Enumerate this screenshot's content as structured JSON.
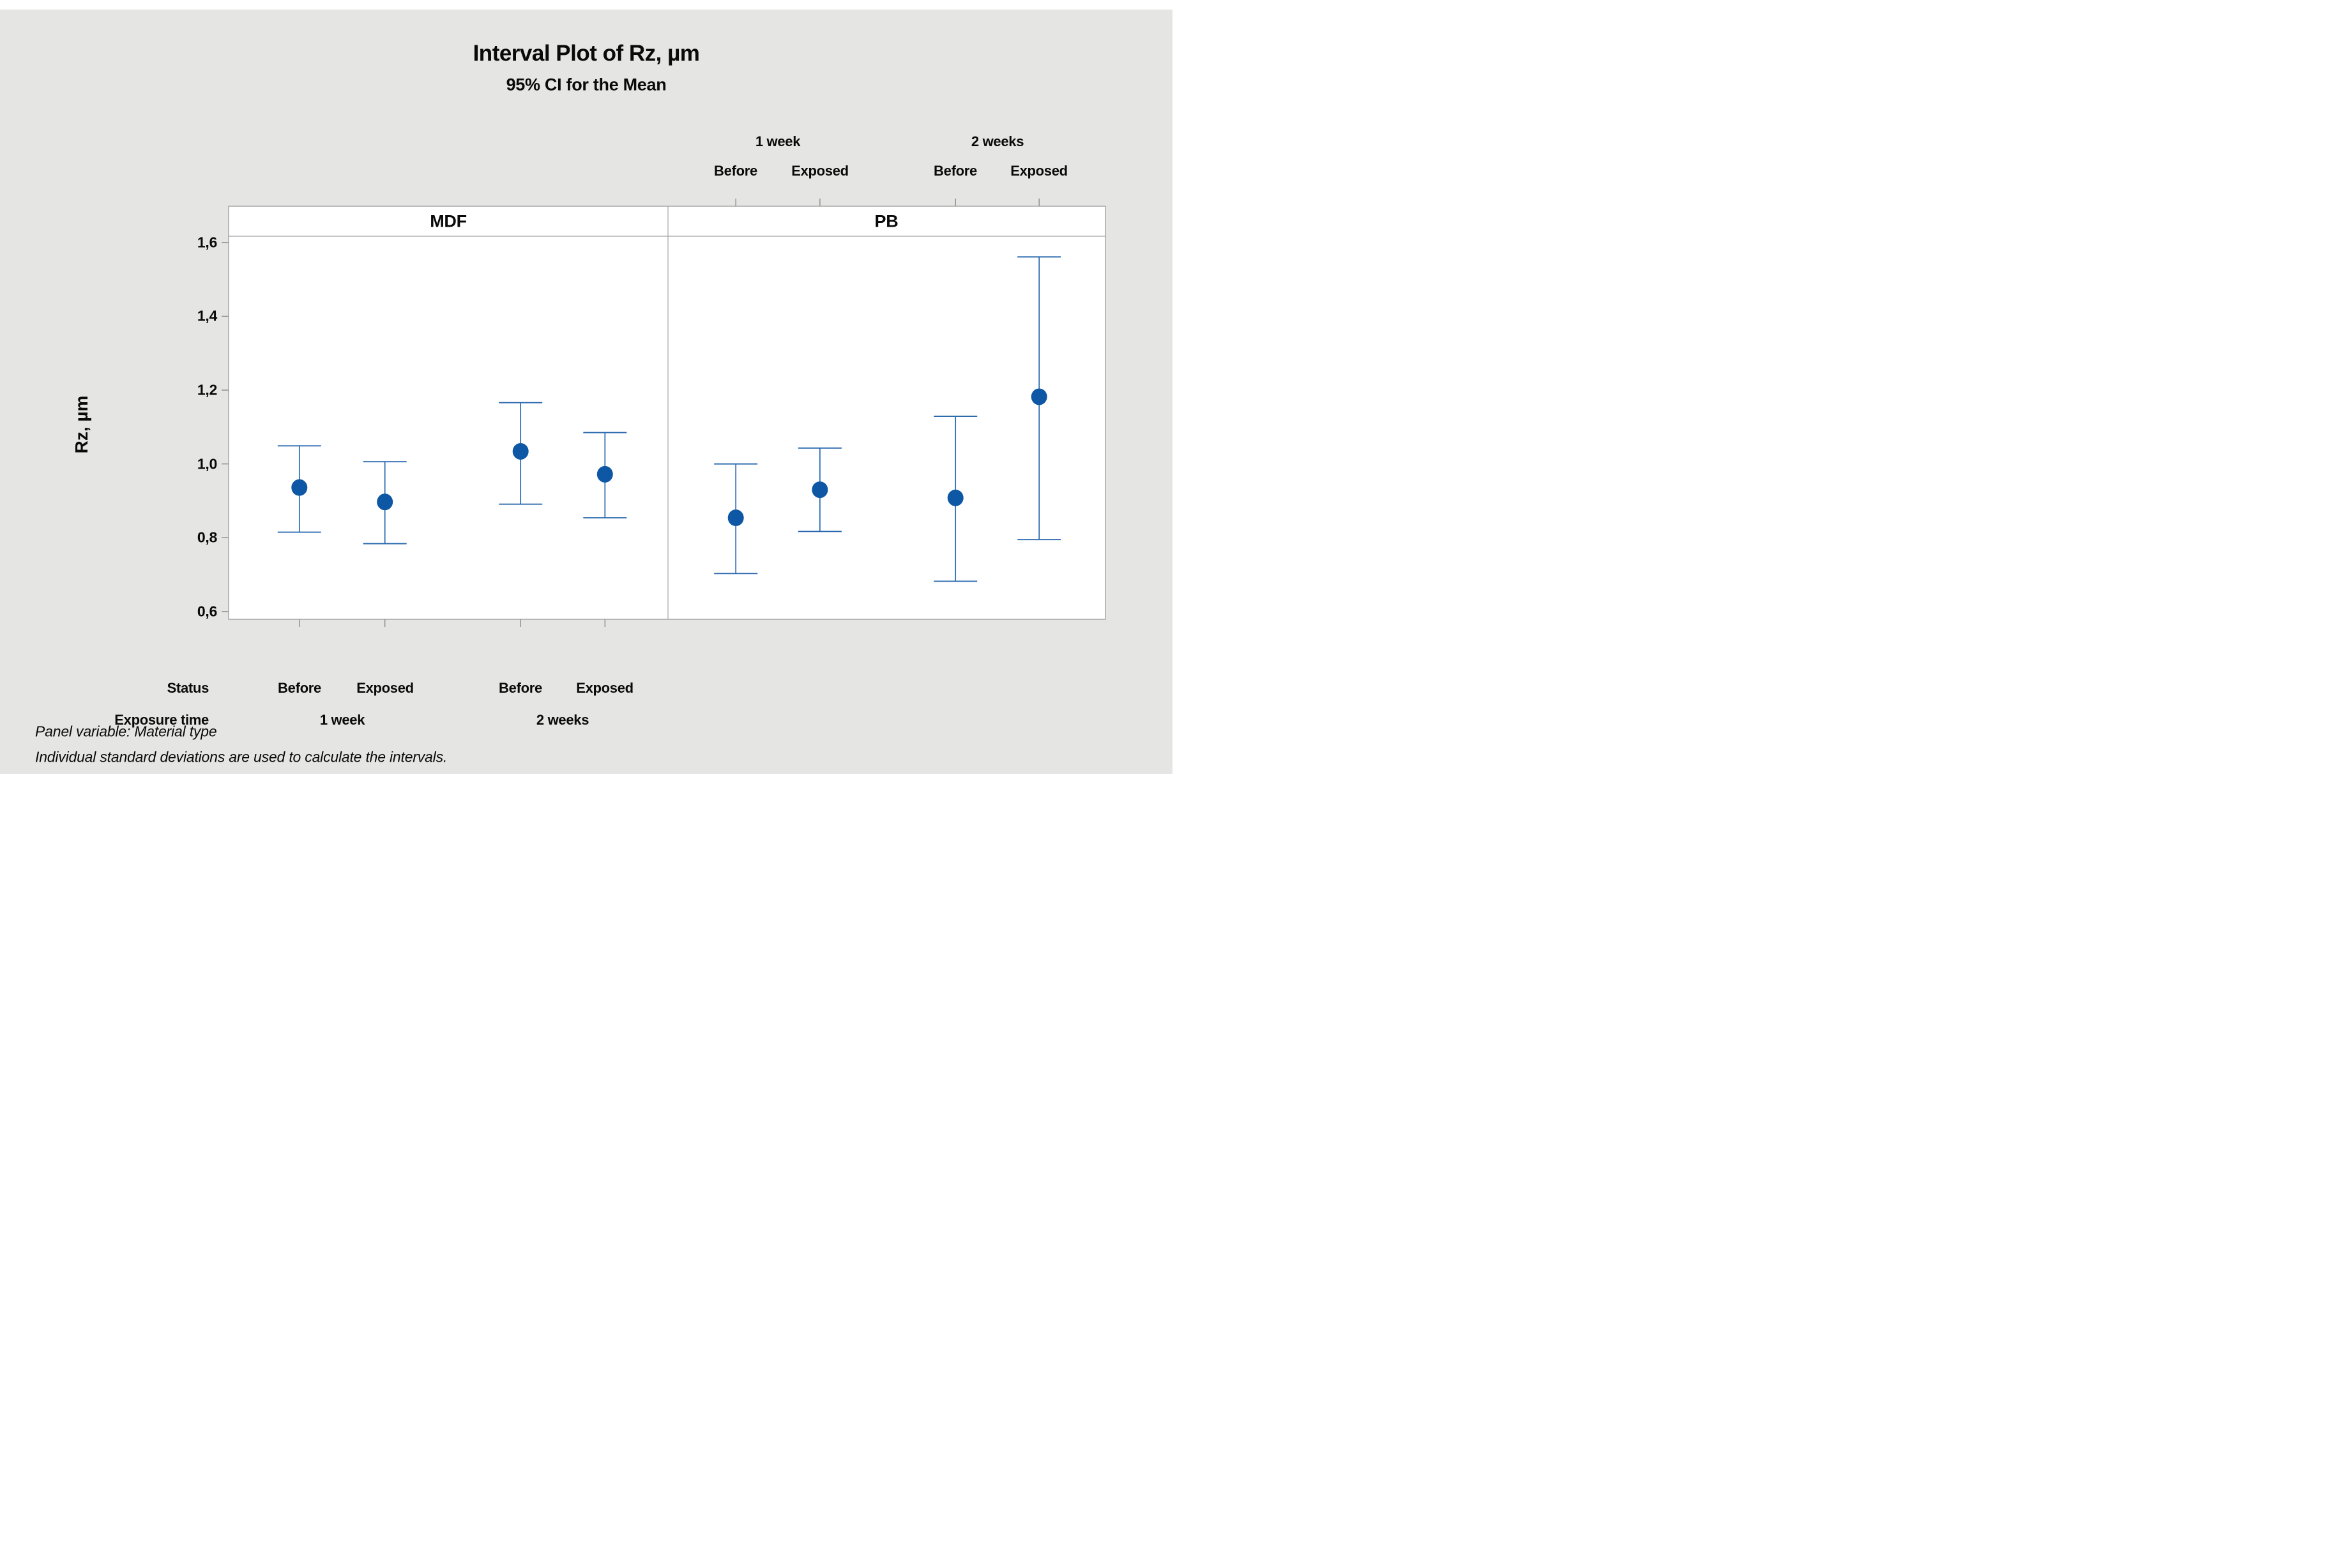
{
  "title": "Interval Plot of Rz, µm",
  "subtitle": "95% CI for the Mean",
  "y_axis": {
    "label": "Rz, µm",
    "ticks": [
      "1,6",
      "1,4",
      "1,2",
      "1,0",
      "0,8",
      "0,6"
    ]
  },
  "panels": [
    {
      "label": "MDF"
    },
    {
      "label": "PB"
    }
  ],
  "top_axis": {
    "exposure_values": [
      "1 week",
      "2 weeks"
    ],
    "status_values": [
      "Before",
      "Exposed",
      "Before",
      "Exposed"
    ]
  },
  "bottom_axis": {
    "status_label": "Status",
    "status_values": [
      "Before",
      "Exposed",
      "Before",
      "Exposed"
    ],
    "exposure_label": "Exposure time",
    "exposure_values": [
      "1 week",
      "2 weeks"
    ]
  },
  "footnotes": [
    "Panel variable: Material type",
    "Individual standard deviations are used to calculate the intervals."
  ],
  "colors": {
    "canvas": "#e5e5e3",
    "plot_background": "#ffffff",
    "panel_border": "#a3a3a3",
    "tick_mark": "#8c8c8c",
    "interval_line": "#2a69ae",
    "marker_fill": "#0d57a4"
  },
  "chart_data": {
    "type": "interval",
    "title": "Interval Plot of Rz, µm",
    "subtitle": "95% CI for the Mean",
    "ylabel": "Rz, µm",
    "panel_variable": "Material type",
    "ylim": [
      0.58,
      1.62
    ],
    "y_ticks": [
      1.6,
      1.4,
      1.2,
      1.0,
      0.8,
      0.6
    ],
    "decimal_separator": ",",
    "legend": "none",
    "grid": false,
    "panels": [
      {
        "panel": "MDF",
        "points": [
          {
            "exposure_time": "1 week",
            "status": "Before",
            "mean": 0.936,
            "ci_low": 0.815,
            "ci_high": 1.049
          },
          {
            "exposure_time": "1 week",
            "status": "Exposed",
            "mean": 0.897,
            "ci_low": 0.784,
            "ci_high": 1.006
          },
          {
            "exposure_time": "2 weeks",
            "status": "Before",
            "mean": 1.034,
            "ci_low": 0.891,
            "ci_high": 1.166
          },
          {
            "exposure_time": "2 weeks",
            "status": "Exposed",
            "mean": 0.972,
            "ci_low": 0.854,
            "ci_high": 1.085
          }
        ]
      },
      {
        "panel": "PB",
        "points": [
          {
            "exposure_time": "1 week",
            "status": "Before",
            "mean": 0.854,
            "ci_low": 0.703,
            "ci_high": 1.0
          },
          {
            "exposure_time": "1 week",
            "status": "Exposed",
            "mean": 0.93,
            "ci_low": 0.817,
            "ci_high": 1.043
          },
          {
            "exposure_time": "2 weeks",
            "status": "Before",
            "mean": 0.908,
            "ci_low": 0.682,
            "ci_high": 1.129
          },
          {
            "exposure_time": "2 weeks",
            "status": "Exposed",
            "mean": 1.182,
            "ci_low": 0.795,
            "ci_high": 1.561
          }
        ]
      }
    ]
  }
}
